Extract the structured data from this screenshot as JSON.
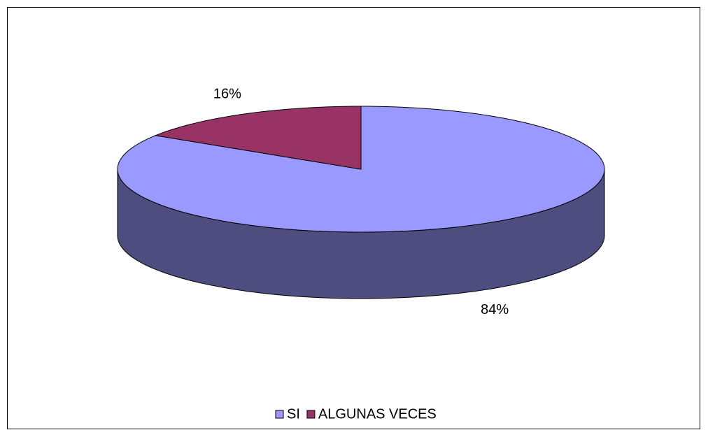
{
  "chart_data": {
    "type": "pie",
    "categories": [
      "SI",
      "ALGUNAS VECES"
    ],
    "values": [
      84,
      16
    ],
    "value_labels": [
      "84%",
      "16%"
    ],
    "colors": [
      "#9999ff",
      "#993366"
    ],
    "legend": "bottom"
  }
}
